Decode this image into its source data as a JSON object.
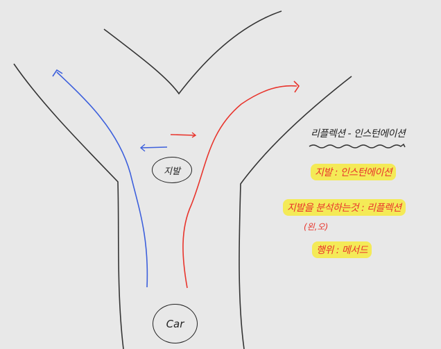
{
  "diagram": {
    "labels": {
      "car": "Car",
      "gibal": "지발"
    },
    "notes": {
      "title": "리플렉션 - 인스턴에이션",
      "gibal_def": "지발 : 인스턴에이션",
      "gibal_analyze": "지발을 분석하는것 : 리플렉션",
      "sub": "(왼,오)",
      "behavior": "행위 : 메서드"
    },
    "colors": {
      "line": "#333333",
      "blue": "#3c5fdc",
      "red": "#e8342c",
      "highlight": "#f4ea57"
    },
    "icons": [
      "left-arrow-icon",
      "right-arrow-icon",
      "up-arrow-icon",
      "wavy-underline-icon"
    ]
  }
}
